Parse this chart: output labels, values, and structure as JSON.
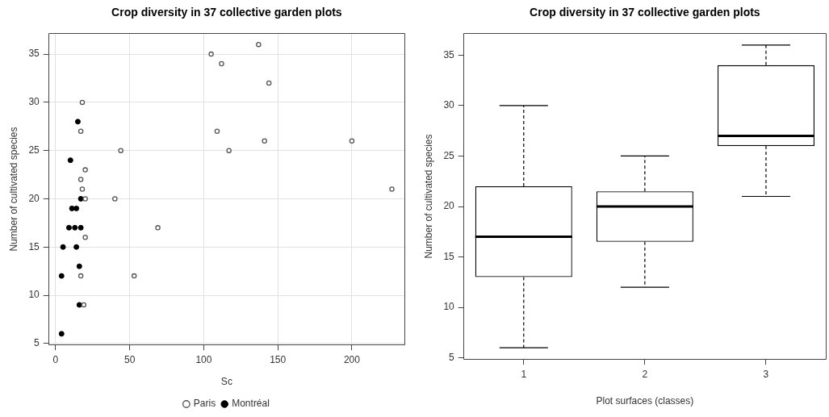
{
  "chart_data": [
    {
      "type": "scatter",
      "title": "Crop diversity in 37 collective garden plots",
      "xlabel": "Sc",
      "ylabel": "Number of cultivated species",
      "series": [
        {
          "name": "Paris",
          "color": "#555555",
          "x": [
            18,
            17,
            44,
            20,
            17,
            18,
            20,
            40,
            69,
            20,
            17,
            53,
            19,
            105,
            112,
            137,
            144,
            109,
            141,
            117,
            200,
            227
          ],
          "values": [
            30,
            27,
            25,
            23,
            22,
            21,
            20,
            20,
            17,
            16,
            12,
            12,
            9,
            35,
            34,
            36,
            32,
            27,
            26,
            25,
            26,
            21
          ]
        },
        {
          "name": "Montréal",
          "color": "#000000",
          "x": [
            15,
            10,
            17,
            11,
            14,
            9,
            13,
            17,
            5,
            14,
            16,
            4,
            16,
            4
          ],
          "values": [
            28,
            24,
            20,
            19,
            19,
            17,
            17,
            17,
            15,
            15,
            13,
            12,
            9,
            6
          ]
        }
      ],
      "xlim": [
        -5,
        236
      ],
      "xticks": [
        0,
        50,
        100,
        150,
        200
      ],
      "ylim": [
        4.8,
        37.2
      ],
      "yticks": [
        5,
        10,
        15,
        20,
        25,
        30,
        35
      ],
      "grid": true,
      "legend": "bottom",
      "marker": "circle"
    },
    {
      "type": "box",
      "title": "Crop diversity in 37 collective garden plots",
      "xlabel": "Plot surfaces (classes)",
      "ylabel": "Number of cultivated species",
      "categories": [
        "1",
        "2",
        "3"
      ],
      "color": "#000000",
      "boxes": [
        {
          "low": 6,
          "q1": 13,
          "median": 17,
          "q3": 22,
          "high": 30
        },
        {
          "low": 12,
          "q1": 16.5,
          "median": 20,
          "q3": 21.5,
          "high": 25
        },
        {
          "low": 21,
          "q1": 26,
          "median": 27,
          "q3": 34,
          "high": 36
        }
      ],
      "ylim": [
        4.8,
        37.2
      ],
      "yticks": [
        5,
        10,
        15,
        20,
        25,
        30,
        35
      ]
    }
  ]
}
